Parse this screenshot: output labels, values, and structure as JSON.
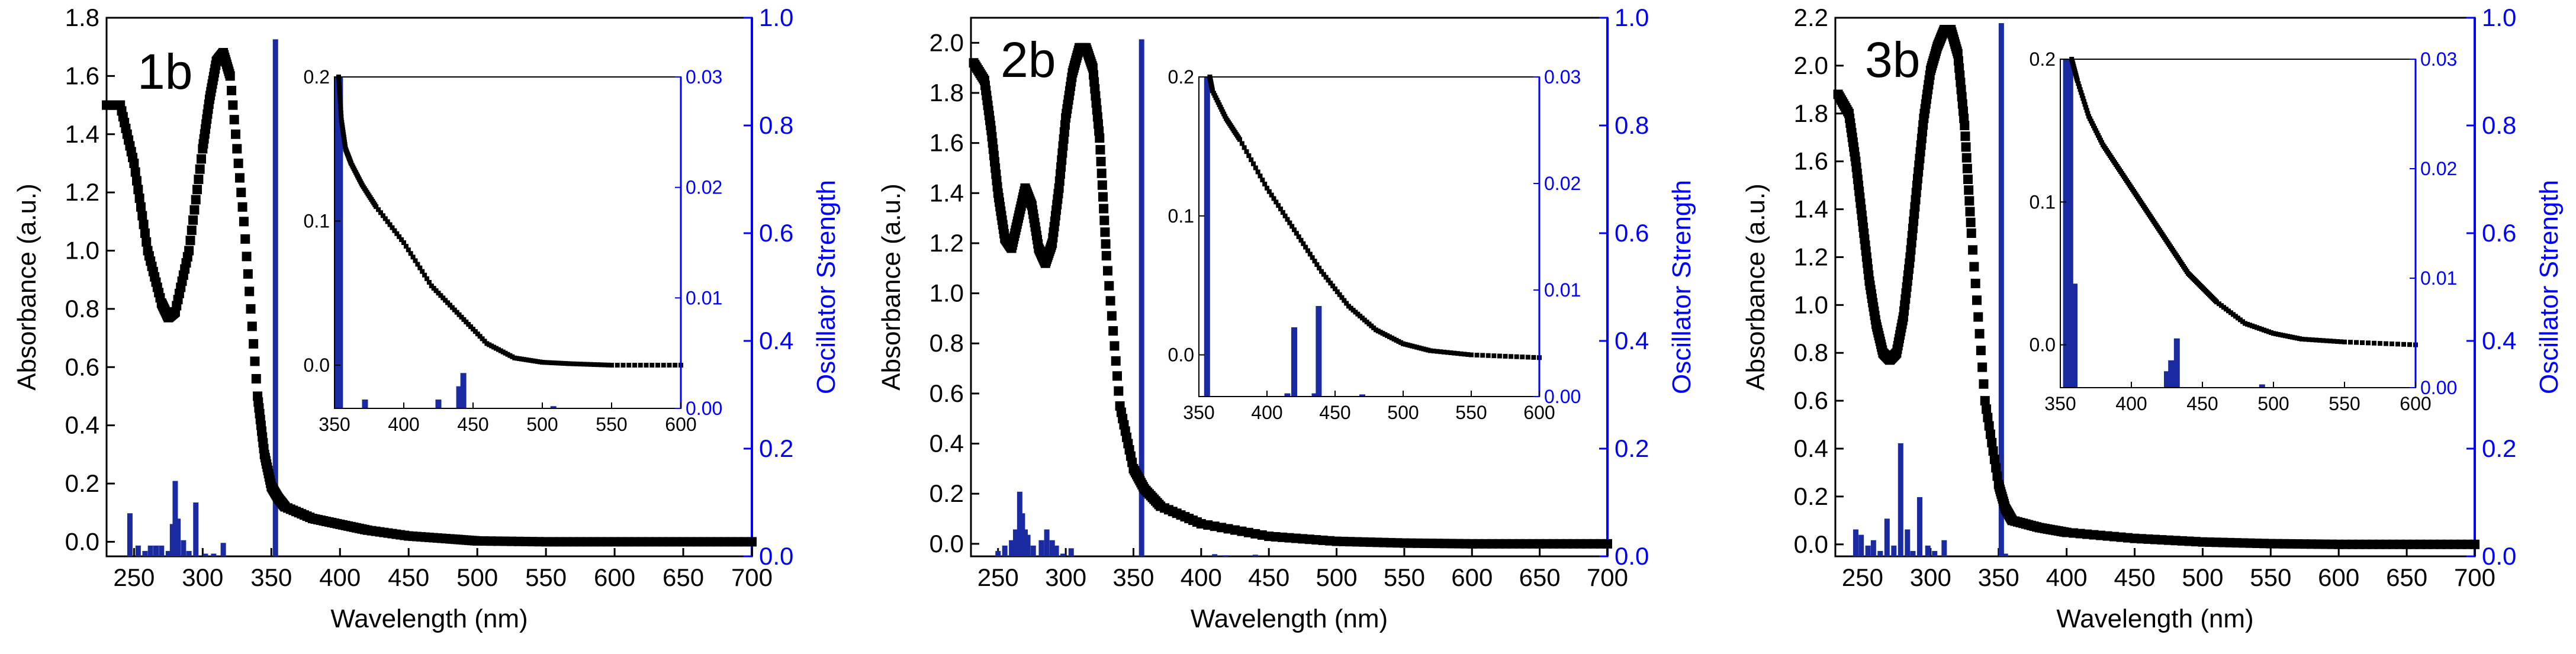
{
  "colors": {
    "absorbance": "#000000",
    "oscillator": "#0000cc",
    "bar": "#1a2aa0",
    "axis_right": "#0000ff"
  },
  "chart_data": [
    {
      "type": "scatter+bar",
      "panel_label": "1b",
      "xlabel": "Wavelength (nm)",
      "ylabel": "Absorbance (a.u.)",
      "y2label": "Oscillator Strength",
      "xlim": [
        230,
        700
      ],
      "ylim": [
        -0.05,
        1.8
      ],
      "y2lim": [
        0,
        1.0
      ],
      "xticks": [
        "250",
        "300",
        "350",
        "400",
        "450",
        "500",
        "550",
        "600",
        "650",
        "700"
      ],
      "yticks": [
        "0.0",
        "0.2",
        "0.4",
        "0.6",
        "0.8",
        "1.0",
        "1.2",
        "1.4",
        "1.6",
        "1.8"
      ],
      "y2ticks": [
        "0.0",
        "0.2",
        "0.4",
        "0.6",
        "0.8",
        "1.0"
      ],
      "absorbance": {
        "x": [
          230,
          240,
          250,
          260,
          270,
          275,
          280,
          290,
          300,
          305,
          310,
          315,
          320,
          330,
          340,
          345,
          350,
          355,
          360,
          380,
          400,
          420,
          450,
          480,
          500,
          550,
          600,
          650,
          700
        ],
        "y": [
          1.5,
          1.5,
          1.3,
          1.0,
          0.82,
          0.77,
          0.79,
          1.0,
          1.35,
          1.52,
          1.65,
          1.68,
          1.6,
          1.1,
          0.5,
          0.3,
          0.19,
          0.15,
          0.12,
          0.08,
          0.06,
          0.04,
          0.02,
          0.01,
          0.003,
          0.0,
          0.0,
          0.0,
          0.0
        ]
      },
      "oscillator": {
        "x": [
          247,
          253,
          258,
          262,
          266,
          270,
          275,
          278,
          280,
          282,
          286,
          290,
          295,
          302,
          308,
          315,
          353
        ],
        "f": [
          0.08,
          0.02,
          0.01,
          0.02,
          0.02,
          0.02,
          0.01,
          0.06,
          0.14,
          0.07,
          0.03,
          0.01,
          0.1,
          0.005,
          0.005,
          0.025,
          0.96
        ]
      },
      "inset": {
        "xlim": [
          350,
          600
        ],
        "ylim": [
          -0.03,
          0.2
        ],
        "y2lim": [
          0,
          0.03
        ],
        "xticks": [
          "350",
          "400",
          "450",
          "500",
          "550",
          "600"
        ],
        "yticks": [
          "0.0",
          "0.1",
          "0.2"
        ],
        "y2ticks": [
          "0.00",
          "0.01",
          "0.02",
          "0.03"
        ],
        "absorbance": {
          "x": [
            353,
            355,
            358,
            362,
            370,
            380,
            400,
            420,
            440,
            460,
            480,
            500,
            520,
            550,
            600
          ],
          "y": [
            0.2,
            0.17,
            0.15,
            0.14,
            0.125,
            0.11,
            0.085,
            0.055,
            0.035,
            0.015,
            0.005,
            0.002,
            0.001,
            0.0,
            0.0
          ]
        },
        "oscillator": {
          "x": [
            352,
            354,
            372,
            425,
            440,
            443,
            508
          ],
          "f": [
            0.03,
            0.03,
            0.0008,
            0.0008,
            0.002,
            0.0032,
            0.0002
          ]
        }
      }
    },
    {
      "type": "scatter+bar",
      "panel_label": "2b",
      "xlabel": "Wavelength (nm)",
      "ylabel": "Absorbance (a.u.)",
      "y2label": "Oscillator Strength",
      "xlim": [
        230,
        700
      ],
      "ylim": [
        -0.05,
        2.1
      ],
      "y2lim": [
        0,
        1.0
      ],
      "xticks": [
        "250",
        "300",
        "350",
        "400",
        "450",
        "500",
        "550",
        "600",
        "650",
        "700"
      ],
      "yticks": [
        "0.0",
        "0.2",
        "0.4",
        "0.6",
        "0.8",
        "1.0",
        "1.2",
        "1.4",
        "1.6",
        "1.8",
        "2.0"
      ],
      "y2ticks": [
        "0.0",
        "0.2",
        "0.4",
        "0.6",
        "0.8",
        "1.0"
      ],
      "absorbance": {
        "x": [
          232,
          240,
          245,
          250,
          255,
          260,
          265,
          270,
          275,
          280,
          285,
          290,
          295,
          300,
          305,
          310,
          315,
          320,
          325,
          330,
          340,
          350,
          358,
          370,
          400,
          450,
          500,
          550,
          600,
          650,
          700
        ],
        "y": [
          1.92,
          1.85,
          1.65,
          1.4,
          1.22,
          1.18,
          1.3,
          1.42,
          1.35,
          1.18,
          1.12,
          1.2,
          1.42,
          1.7,
          1.88,
          1.98,
          1.98,
          1.9,
          1.62,
          1.15,
          0.55,
          0.3,
          0.22,
          0.15,
          0.08,
          0.03,
          0.01,
          0.003,
          0.0,
          0.0,
          0.0
        ]
      },
      "oscillator": {
        "x": [
          250,
          255,
          260,
          263,
          266,
          268,
          270,
          272,
          276,
          282,
          286,
          290,
          293,
          298,
          304,
          356,
          410,
          418,
          440
        ],
        "f": [
          0.01,
          0.02,
          0.03,
          0.05,
          0.12,
          0.08,
          0.05,
          0.04,
          0.02,
          0.03,
          0.05,
          0.03,
          0.02,
          0.005,
          0.015,
          0.96,
          0.004,
          0.002,
          0.003
        ]
      },
      "inset": {
        "xlim": [
          350,
          600
        ],
        "ylim": [
          -0.03,
          0.2
        ],
        "y2lim": [
          0,
          0.03
        ],
        "xticks": [
          "350",
          "400",
          "450",
          "500",
          "550",
          "600"
        ],
        "yticks": [
          "0.0",
          "0.1",
          "0.2"
        ],
        "y2ticks": [
          "0.00",
          "0.01",
          "0.02",
          "0.03"
        ],
        "absorbance": {
          "x": [
            358,
            360,
            370,
            380,
            400,
            420,
            440,
            460,
            480,
            500,
            520,
            550,
            600
          ],
          "y": [
            0.2,
            0.19,
            0.17,
            0.155,
            0.12,
            0.09,
            0.06,
            0.035,
            0.018,
            0.008,
            0.003,
            0.0,
            -0.002
          ]
        },
        "oscillator": {
          "x": [
            356,
            415,
            420,
            435,
            438,
            470
          ],
          "f": [
            0.03,
            0.0003,
            0.0065,
            0.0003,
            0.0085,
            0.0002
          ]
        }
      }
    },
    {
      "type": "scatter+bar",
      "panel_label": "3b",
      "xlabel": "Wavelength (nm)",
      "ylabel": "Absorbance (a.u.)",
      "y2label": "Oscillator Strength",
      "xlim": [
        230,
        700
      ],
      "ylim": [
        -0.05,
        2.2
      ],
      "y2lim": [
        0,
        1.0
      ],
      "xticks": [
        "250",
        "300",
        "350",
        "400",
        "450",
        "500",
        "550",
        "600",
        "650",
        "700"
      ],
      "yticks": [
        "0.0",
        "0.2",
        "0.4",
        "0.6",
        "0.8",
        "1.0",
        "1.2",
        "1.4",
        "1.6",
        "1.8",
        "2.0",
        "2.2"
      ],
      "y2ticks": [
        "0.0",
        "0.2",
        "0.4",
        "0.6",
        "0.8",
        "1.0"
      ],
      "absorbance": {
        "x": [
          232,
          240,
          245,
          250,
          255,
          260,
          265,
          270,
          275,
          280,
          285,
          290,
          295,
          300,
          305,
          310,
          315,
          320,
          325,
          330,
          340,
          350,
          355,
          360,
          380,
          400,
          450,
          500,
          550,
          600,
          650,
          700
        ],
        "y": [
          1.88,
          1.8,
          1.6,
          1.35,
          1.1,
          0.92,
          0.8,
          0.77,
          0.8,
          0.95,
          1.2,
          1.5,
          1.78,
          1.98,
          2.08,
          2.15,
          2.15,
          2.05,
          1.75,
          1.3,
          0.6,
          0.25,
          0.15,
          0.1,
          0.07,
          0.05,
          0.025,
          0.01,
          0.003,
          0.0,
          0.0,
          0.0
        ]
      },
      "oscillator": {
        "x": [
          245,
          249,
          254,
          258,
          263,
          268,
          273,
          278,
          283,
          287,
          292,
          298,
          303,
          310,
          352,
          355
        ],
        "f": [
          0.05,
          0.04,
          0.02,
          0.03,
          0.01,
          0.07,
          0.02,
          0.21,
          0.05,
          0.01,
          0.11,
          0.02,
          0.01,
          0.03,
          0.99,
          0.005
        ]
      },
      "inset": {
        "xlim": [
          350,
          600
        ],
        "ylim": [
          -0.03,
          0.2
        ],
        "y2lim": [
          0,
          0.03
        ],
        "xticks": [
          "350",
          "400",
          "450",
          "500",
          "550",
          "600"
        ],
        "yticks": [
          "0.0",
          "0.1",
          "0.2"
        ],
        "y2ticks": [
          "0.00",
          "0.01",
          "0.02",
          "0.03"
        ],
        "absorbance": {
          "x": [
            358,
            362,
            370,
            380,
            390,
            400,
            410,
            420,
            430,
            440,
            450,
            460,
            480,
            500,
            520,
            550,
            600
          ],
          "y": [
            0.2,
            0.185,
            0.16,
            0.14,
            0.125,
            0.11,
            0.095,
            0.08,
            0.065,
            0.05,
            0.04,
            0.03,
            0.015,
            0.008,
            0.004,
            0.002,
            0.0
          ]
        },
        "oscillator": {
          "x": [
            354,
            357,
            360,
            425,
            428,
            432,
            492
          ],
          "f": [
            0.03,
            0.03,
            0.0095,
            0.0015,
            0.0025,
            0.0045,
            0.0003
          ]
        }
      }
    }
  ]
}
